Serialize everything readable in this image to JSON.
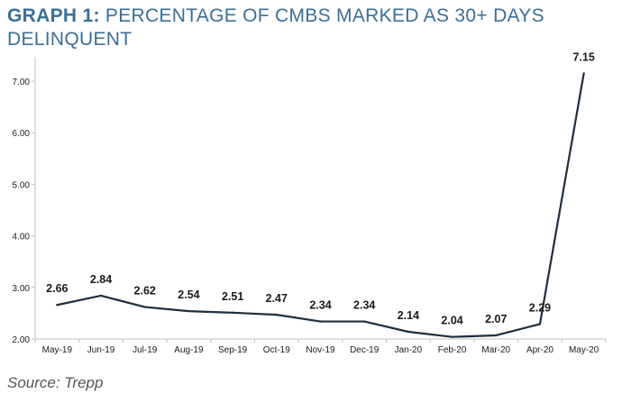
{
  "title": {
    "lead": "GRAPH 1",
    "colon": ":",
    "text": " PERCENTAGE OF CMBS MARKED AS 30+ DAYS DELINQUENT"
  },
  "source": "Source: Trepp",
  "colors": {
    "title": "#3a6f96",
    "line": "#1f2e3d",
    "axis": "#bfbfbf",
    "text": "#1a1a1a"
  },
  "chart_data": {
    "type": "line",
    "title": "GRAPH 1: PERCENTAGE OF CMBS MARKED AS 30+ DAYS DELINQUENT",
    "xlabel": "",
    "ylabel": "",
    "categories": [
      "May-19",
      "Jun-19",
      "Jul-19",
      "Aug-19",
      "Sep-19",
      "Oct-19",
      "Nov-19",
      "Dec-19",
      "Jan-20",
      "Feb-20",
      "Mar-20",
      "Apr-20",
      "May-20"
    ],
    "values": [
      2.66,
      2.84,
      2.62,
      2.54,
      2.51,
      2.47,
      2.34,
      2.34,
      2.14,
      2.04,
      2.07,
      2.29,
      7.15
    ],
    "data_labels": [
      "2.66",
      "2.84",
      "2.62",
      "2.54",
      "2.51",
      "2.47",
      "2.34",
      "2.34",
      "2.14",
      "2.04",
      "2.07",
      "2.29",
      "7.15"
    ],
    "y_ticks": [
      "2.00",
      "3.00",
      "4.00",
      "5.00",
      "6.00",
      "7.00"
    ],
    "ylim": [
      2,
      7.6
    ],
    "grid": false,
    "legend": "none"
  }
}
